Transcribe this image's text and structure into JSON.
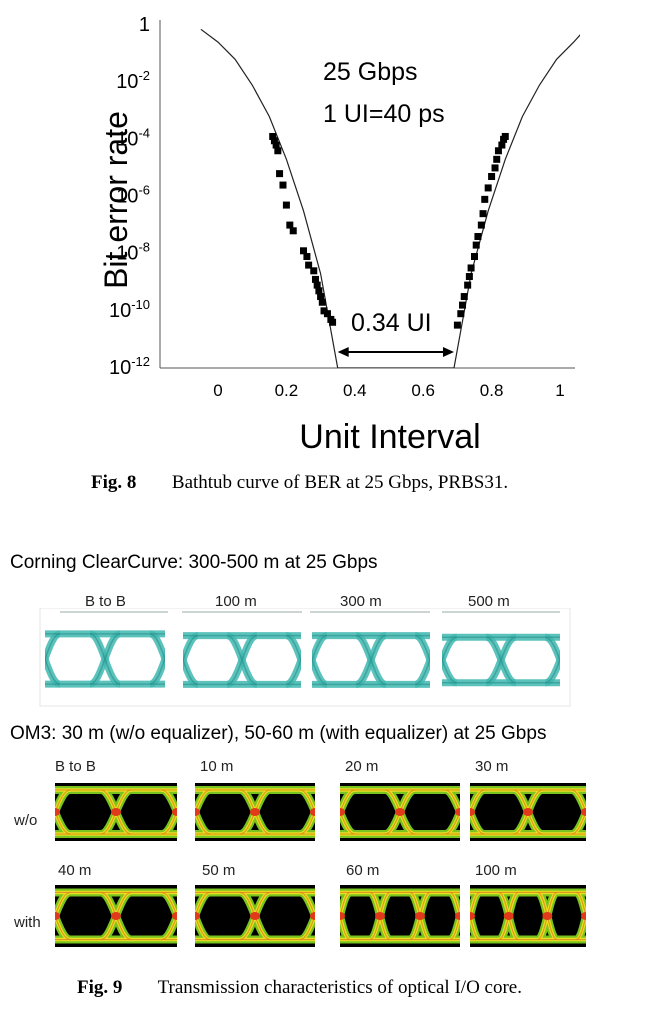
{
  "fig8": {
    "chart_data": {
      "type": "scatter",
      "title": "",
      "xlabel": "Unit Interval",
      "ylabel": "Bit error rate",
      "x_ticks_bottom": [
        "0",
        "0.2",
        "0.4",
        "0.6",
        "0.8",
        "1"
      ],
      "x_tick_values": [
        0,
        0.2,
        0.4,
        0.6,
        0.8,
        1
      ],
      "x_tick_top": "1",
      "y_ticks": [
        {
          "base": "10",
          "exp": "-2",
          "value": 0.01
        },
        {
          "base": "10",
          "exp": "-4",
          "value": 0.0001
        },
        {
          "base": "10",
          "exp": "-6",
          "value": 1e-06
        },
        {
          "base": "10",
          "exp": "-8",
          "value": 1e-08
        },
        {
          "base": "10",
          "exp": "-10",
          "value": 1e-10
        },
        {
          "base": "10",
          "exp": "-12",
          "value": 1e-12
        }
      ],
      "xlim": [
        -0.05,
        1.05
      ],
      "ylim_log10": [
        -12,
        0
      ],
      "y_scale": "log",
      "annotations": [
        "25 Gbps",
        "1 UI=40 ps",
        "0.34 UI"
      ],
      "eye_opening": {
        "x_start": 0.35,
        "x_end": 0.69,
        "label": "0.34 UI"
      },
      "series": [
        {
          "type": "scatter",
          "marker": "square",
          "points": [
            [
              0.16,
              -3.9
            ],
            [
              0.165,
              -4.05
            ],
            [
              0.17,
              -4.2
            ],
            [
              0.175,
              -4.4
            ],
            [
              0.18,
              -5.2
            ],
            [
              0.19,
              -5.6
            ],
            [
              0.2,
              -6.3
            ],
            [
              0.21,
              -7.0
            ],
            [
              0.22,
              -7.2
            ],
            [
              0.25,
              -7.9
            ],
            [
              0.26,
              -8.1
            ],
            [
              0.265,
              -8.4
            ],
            [
              0.28,
              -8.6
            ],
            [
              0.285,
              -8.9
            ],
            [
              0.29,
              -9.1
            ],
            [
              0.295,
              -9.3
            ],
            [
              0.3,
              -9.5
            ],
            [
              0.305,
              -9.7
            ],
            [
              0.31,
              -10.0
            ],
            [
              0.32,
              -10.1
            ],
            [
              0.33,
              -10.3
            ],
            [
              0.335,
              -10.4
            ],
            [
              0.7,
              -10.5
            ],
            [
              0.71,
              -10.1
            ],
            [
              0.715,
              -9.8
            ],
            [
              0.72,
              -9.5
            ],
            [
              0.73,
              -9.1
            ],
            [
              0.735,
              -8.8
            ],
            [
              0.74,
              -8.5
            ],
            [
              0.75,
              -8.1
            ],
            [
              0.755,
              -7.7
            ],
            [
              0.76,
              -7.4
            ],
            [
              0.77,
              -7.0
            ],
            [
              0.775,
              -6.6
            ],
            [
              0.78,
              -6.1
            ],
            [
              0.79,
              -5.7
            ],
            [
              0.8,
              -5.3
            ],
            [
              0.81,
              -5.0
            ],
            [
              0.815,
              -4.7
            ],
            [
              0.82,
              -4.4
            ],
            [
              0.83,
              -4.2
            ],
            [
              0.835,
              -4.0
            ],
            [
              0.84,
              -3.9
            ]
          ]
        },
        {
          "type": "line",
          "points": [
            [
              -0.05,
              -0.15
            ],
            [
              0.0,
              -0.6
            ],
            [
              0.05,
              -1.2
            ],
            [
              0.1,
              -2.1
            ],
            [
              0.15,
              -3.2
            ],
            [
              0.2,
              -4.7
            ],
            [
              0.25,
              -6.5
            ],
            [
              0.3,
              -8.7
            ],
            [
              0.35,
              -12.0
            ],
            [
              0.69,
              -12.0
            ],
            [
              0.74,
              -8.7
            ],
            [
              0.79,
              -6.5
            ],
            [
              0.84,
              -4.7
            ],
            [
              0.89,
              -3.2
            ],
            [
              0.94,
              -2.1
            ],
            [
              0.99,
              -1.2
            ],
            [
              1.04,
              -0.6
            ],
            [
              1.07,
              -0.2
            ]
          ]
        }
      ]
    },
    "caption_label": "Fig. 8",
    "caption_text": "Bathtub curve of BER at 25 Gbps, PRBS31."
  },
  "fig9": {
    "heading1": "Corning ClearCurve: 300-500 m at 25 Gbps",
    "row1_labels": [
      "B to B",
      "100 m",
      "300 m",
      "500 m"
    ],
    "heading2": "OM3: 30 m (w/o equalizer), 50-60 m (with equalizer) at 25 Gbps",
    "row2_labels": [
      "B to B",
      "10 m",
      "20 m",
      "30 m"
    ],
    "row3_labels": [
      "40 m",
      "50 m",
      "60 m",
      "100 m"
    ],
    "side_label_wo": "w/o",
    "side_label_with": "with",
    "eye_colors": {
      "teal": "#3fb8b0",
      "heat_outer": "#79c41f",
      "heat_mid": "#e8e020",
      "heat_hot": "#e03a1a"
    },
    "caption_label": "Fig. 9",
    "caption_text": "Transmission characteristics of optical I/O core."
  }
}
